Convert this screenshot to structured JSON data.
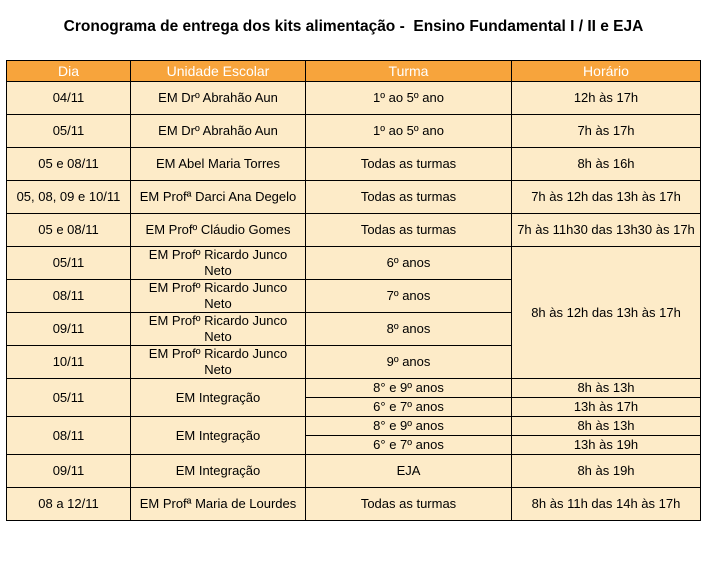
{
  "title": "Cronograma de entrega dos kits alimentação -  Ensino Fundamental I / II e EJA",
  "columns": [
    "Dia",
    "Unidade Escolar",
    "Turma",
    "Horário"
  ],
  "rows": [
    {
      "dia": "04/11",
      "unidade": "EM Drº Abrahão Aun",
      "turma": "1º ao 5º ano",
      "horario": "12h às 17h"
    },
    {
      "dia": "05/11",
      "unidade": "EM Drº Abrahão Aun",
      "turma": "1º ao 5º ano",
      "horario": "7h às 17h"
    },
    {
      "dia": "05 e 08/11",
      "unidade": "EM Abel Maria Torres",
      "turma": "Todas as turmas",
      "horario": "8h às 16h"
    },
    {
      "dia": "05, 08, 09 e 10/11",
      "unidade": "EM Profª Darci Ana Degelo",
      "turma": "Todas as turmas",
      "horario": "7h às 12h das 13h às 17h"
    },
    {
      "dia": "05 e 08/11",
      "unidade": "EM Profº Cláudio Gomes",
      "turma": "Todas as turmas",
      "horario": "7h às 11h30 das 13h30 às 17h"
    },
    {
      "dia": "05/11",
      "unidade": "EM Profº Ricardo Junco Neto",
      "turma": "6º anos"
    },
    {
      "dia": "08/11",
      "unidade": "EM Profº Ricardo Junco Neto",
      "turma": "7º anos"
    },
    {
      "dia": "09/11",
      "unidade": "EM Profº Ricardo Junco Neto",
      "turma": "8º anos"
    },
    {
      "dia": "10/11",
      "unidade": "EM Profº Ricardo Junco Neto",
      "turma": "9º anos"
    },
    {
      "dia": "05/11",
      "unidade": "EM Integração",
      "turmas": [
        {
          "turma": "8° e 9º anos",
          "horario": "8h às 13h"
        },
        {
          "turma": "6° e 7º anos",
          "horario": "13h às 17h"
        }
      ]
    },
    {
      "dia": "08/11",
      "unidade": "EM Integração",
      "turmas": [
        {
          "turma": "8° e 9º anos",
          "horario": "8h às 13h"
        },
        {
          "turma": "6° e 7º anos",
          "horario": "13h às 19h"
        }
      ]
    },
    {
      "dia": "09/11",
      "unidade": "EM Integração",
      "turma": "EJA",
      "horario": "8h às 19h"
    },
    {
      "dia": "08 a 12/11",
      "unidade": "EM Profª Maria de Lourdes",
      "turma": "Todas as turmas",
      "horario": "8h às 11h das 14h às 17h"
    }
  ],
  "ricardo_junco_horario": "8h às 12h das 13h às 17h",
  "colors": {
    "header_bg": "#f7a43c",
    "header_text": "#ffffff",
    "cell_bg": "#fdebc8",
    "border": "#000000"
  }
}
